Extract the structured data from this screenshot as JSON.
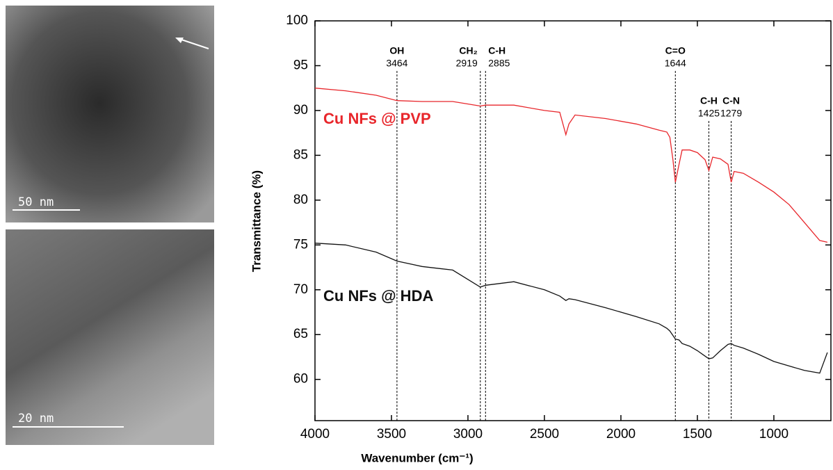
{
  "images": [
    {
      "scale_bar": "50 nm"
    },
    {
      "scale_bar": "20 nm"
    }
  ],
  "chart_data": {
    "type": "line",
    "xlabel": "Wavenumber (cm⁻¹)",
    "ylabel": "Transmittance (%)",
    "x": [
      4000,
      3800,
      3600,
      3464,
      3300,
      3100,
      2919,
      2885,
      2700,
      2500,
      2400,
      2360,
      2340,
      2300,
      2100,
      1900,
      1750,
      1700,
      1680,
      1660,
      1644,
      1620,
      1600,
      1550,
      1500,
      1450,
      1425,
      1400,
      1350,
      1300,
      1279,
      1260,
      1200,
      1100,
      1000,
      900,
      800,
      700,
      650
    ],
    "series": [
      {
        "name": "Cu NFs @ PVP",
        "color": "#e8262b",
        "values": [
          92.5,
          92.2,
          91.7,
          91.1,
          91.0,
          91.0,
          90.5,
          90.6,
          90.6,
          90.0,
          89.8,
          87.3,
          88.5,
          89.5,
          89.1,
          88.5,
          87.8,
          87.6,
          87.0,
          84.5,
          82.0,
          84.0,
          85.6,
          85.6,
          85.3,
          84.5,
          83.3,
          84.8,
          84.6,
          84.0,
          82.0,
          83.2,
          83.0,
          82.0,
          80.9,
          79.5,
          77.5,
          75.5,
          75.3
        ]
      },
      {
        "name": "Cu NFs @ HDA",
        "color": "#111111",
        "values": [
          75.2,
          75.0,
          74.2,
          73.2,
          72.6,
          72.2,
          70.3,
          70.5,
          70.9,
          70.0,
          69.3,
          68.8,
          69.0,
          68.9,
          68.0,
          67.0,
          66.2,
          65.7,
          65.4,
          64.9,
          64.5,
          64.4,
          64.0,
          63.7,
          63.2,
          62.6,
          62.3,
          62.4,
          63.2,
          63.9,
          64.0,
          63.8,
          63.5,
          62.8,
          62.0,
          61.5,
          61.0,
          60.7,
          63.0
        ]
      }
    ],
    "annotations": [
      {
        "label": "OH",
        "value": 3464
      },
      {
        "label": "CH₂",
        "value": 2919
      },
      {
        "label": "C-H",
        "value": 2885
      },
      {
        "label": "C=O",
        "value": 1644
      },
      {
        "label": "C-H",
        "value": 1425
      },
      {
        "label": "C-N",
        "value": 1279
      }
    ],
    "xlim": [
      4000,
      627
    ],
    "ylim": [
      55.4,
      100
    ],
    "xticks": [
      4000,
      3500,
      3000,
      2500,
      2000,
      1500,
      1000
    ],
    "yticks": [
      60,
      65,
      70,
      75,
      80,
      85,
      90,
      95,
      100
    ]
  }
}
